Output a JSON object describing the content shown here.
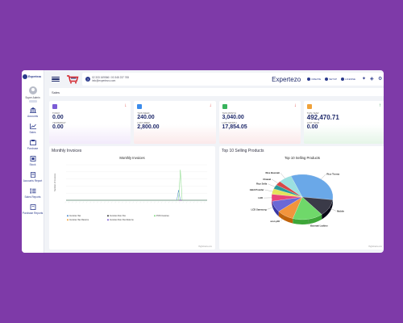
{
  "brand": {
    "name": "Expertezo"
  },
  "user": {
    "role": "Super Admin"
  },
  "sidebar": {
    "items": [
      {
        "label": "Accounts",
        "icon": "bank-icon"
      },
      {
        "label": "Sales",
        "icon": "chart-icon"
      },
      {
        "label": "Purchase",
        "icon": "purchase-icon"
      },
      {
        "label": "Stock",
        "icon": "stock-icon"
      },
      {
        "label": "Accounts Report",
        "icon": "report-icon"
      },
      {
        "label": "Sales Reports",
        "icon": "list-icon"
      },
      {
        "label": "Purchase Reports",
        "icon": "purchase-report-icon"
      }
    ]
  },
  "topbar": {
    "phone": "02 333 169566 / 00 348 237 765",
    "email": "info@expertezo.com",
    "app_name": "Expertezo",
    "tools": [
      "CREATE",
      "SETUP",
      "LICENSE"
    ]
  },
  "breadcrumb": "Sales",
  "stats": [
    {
      "color": "#7b5cd6",
      "bg": "#f2eafb",
      "arrow": "↓",
      "arrow_color": "#e0413e",
      "cap1": "TODAY",
      "val1": "0.00",
      "cap2": "YESTERDAY",
      "val2": "0.00"
    },
    {
      "color": "#3b8beb",
      "bg": "#fbe9ea",
      "arrow": "↓",
      "arrow_color": "#e0413e",
      "cap1": "THIS WEEK",
      "val1": "240.00",
      "cap2": "LAST WEEK",
      "val2": "2,800.00"
    },
    {
      "color": "#38b35c",
      "bg": "#fbe9ea",
      "arrow": "↓",
      "arrow_color": "#e0413e",
      "cap1": "THIS MONTH",
      "val1": "3,040.00",
      "cap2": "LAST MONTH",
      "val2": "17,854.05"
    },
    {
      "color": "#f0a23a",
      "bg": "#e5f5e8",
      "arrow": "↑",
      "arrow_color": "#2a9a4a",
      "cap1": "THIS YEAR",
      "val1": "492,470.71",
      "cap2": "LAST YEAR",
      "val2": "0.00"
    }
  ],
  "panels": {
    "left_title": "Monthly Invoices",
    "right_title": "Top 10 Selling Products",
    "credit": "Highcharts.com"
  },
  "chart_data": [
    {
      "type": "line",
      "title": "Monthly Invoices",
      "ylabel": "Number of Invoices",
      "series": [
        {
          "name": "Invoices Tax",
          "color": "#4a86c8",
          "values": [
            0,
            0,
            0,
            0,
            0,
            0,
            0,
            0,
            0,
            0,
            0,
            0,
            0,
            0,
            0,
            0,
            0,
            0,
            0,
            0,
            0,
            0,
            0,
            0,
            0,
            0,
            0,
            0,
            0,
            0,
            0,
            0,
            0,
            0,
            0,
            0,
            0,
            0,
            0,
            0,
            0,
            0,
            0,
            0,
            0,
            0,
            0,
            0,
            0,
            0,
            0,
            0,
            0,
            0,
            0,
            0,
            0,
            0,
            0,
            0,
            0,
            0,
            0,
            0,
            0,
            0,
            0,
            0,
            0,
            0,
            0,
            0,
            0,
            0,
            0,
            0,
            0,
            0,
            0,
            0
          ]
        },
        {
          "name": "Invoices Tax Returns",
          "color": "#f0a23a",
          "values": [
            0,
            0,
            0,
            0,
            0,
            0,
            0,
            0,
            0,
            0,
            0,
            0,
            0,
            0,
            0,
            0,
            0,
            0,
            0,
            0,
            0,
            0,
            0,
            0,
            0,
            0,
            0,
            0,
            0,
            0,
            0,
            0,
            0,
            0,
            0,
            0,
            0,
            0,
            0,
            0,
            0,
            0,
            0,
            0,
            0,
            0,
            0,
            0,
            0,
            0,
            0,
            0,
            0,
            0,
            0,
            0,
            0,
            0,
            0,
            0,
            0,
            0,
            0,
            0,
            0,
            0,
            0,
            0,
            0,
            0,
            0,
            0,
            0,
            0,
            0,
            0,
            0,
            0,
            0,
            0
          ]
        },
        {
          "name": "Invoices Non-Tax",
          "color": "#333333",
          "values": [
            0,
            0,
            0,
            0,
            0,
            0,
            0,
            0,
            0,
            0,
            0,
            0,
            0,
            0,
            0,
            0,
            0,
            0,
            0,
            0,
            0,
            0,
            0,
            0,
            0,
            0,
            0,
            0,
            0,
            0,
            0,
            0,
            0,
            0,
            0,
            0,
            0,
            0,
            0,
            0,
            0,
            0,
            0,
            0,
            0,
            0,
            0,
            0,
            0,
            0,
            0,
            0,
            0,
            0,
            0,
            0,
            0,
            0,
            0,
            0,
            0,
            0,
            0,
            0,
            0,
            0,
            0,
            0,
            0,
            0,
            0,
            0,
            0,
            0,
            0,
            0,
            0,
            0,
            0,
            0
          ]
        },
        {
          "name": "Invoices Non-Tax Returns",
          "color": "#7b5cd6",
          "values": [
            0,
            0,
            0,
            0,
            0,
            0,
            0,
            0,
            0,
            0,
            0,
            0,
            0,
            0,
            0,
            0,
            0,
            0,
            0,
            0,
            0,
            0,
            0,
            0,
            0,
            0,
            0,
            0,
            0,
            0,
            0,
            0,
            0,
            0,
            0,
            0,
            0,
            0,
            0,
            0,
            0,
            0,
            0,
            0,
            0,
            0,
            0,
            0,
            0,
            0,
            0,
            0,
            0,
            0,
            0,
            0,
            0,
            0,
            0,
            0,
            0,
            0,
            0,
            0,
            0,
            0,
            0,
            0,
            0,
            0,
            0,
            0,
            0,
            0,
            0,
            0,
            0,
            0,
            0,
            0
          ]
        },
        {
          "name": "POS Invoices",
          "color": "#7ed87e",
          "values": [
            0,
            0,
            0,
            0,
            0,
            0,
            0,
            0,
            0,
            0,
            0,
            0,
            0,
            0,
            0,
            0,
            0,
            0,
            0,
            0,
            0,
            0,
            0,
            0,
            0,
            0,
            0,
            0,
            0,
            0,
            0,
            0,
            0,
            0,
            0,
            0,
            0,
            0,
            0,
            0,
            0,
            0,
            0,
            0,
            0,
            0,
            0,
            0,
            0,
            0,
            0,
            0,
            0,
            0,
            0,
            0,
            0,
            0,
            0,
            0,
            0,
            0,
            0,
            0,
            0,
            0,
            0,
            0,
            0,
            0,
            0,
            0,
            0,
            0,
            0,
            0,
            0,
            0,
            0,
            0
          ]
        }
      ],
      "x_count": 80,
      "spike": {
        "index": 64,
        "value": 30,
        "series": 4
      },
      "spike2": {
        "index": 63,
        "value": 10,
        "series": 0
      },
      "ylim": [
        0,
        35
      ],
      "legend": "bottom"
    },
    {
      "type": "pie",
      "title": "Top 10 Selling Products",
      "slices": [
        {
          "label": "Rice Tooma",
          "value": 33,
          "color": "#6aa8e8"
        },
        {
          "label": "Mobile",
          "value": 12,
          "color": "#3a3a48"
        },
        {
          "label": "Basmati Laddoo",
          "value": 16,
          "color": "#6fd86a"
        },
        {
          "label": "uion p30",
          "value": 9,
          "color": "#f2943c"
        },
        {
          "label": "LCD Samsung",
          "value": 8,
          "color": "#6b68d6"
        },
        {
          "label": "LED",
          "value": 5,
          "color": "#e8457a"
        },
        {
          "label": "Haldi Powder",
          "value": 4,
          "color": "#e4e45a"
        },
        {
          "label": "Rice Sella",
          "value": 3,
          "color": "#2a9b9b"
        },
        {
          "label": "Chawal",
          "value": 3,
          "color": "#d84848"
        },
        {
          "label": "Rice Basmati",
          "value": 7,
          "color": "#9be0e0"
        }
      ]
    }
  ]
}
